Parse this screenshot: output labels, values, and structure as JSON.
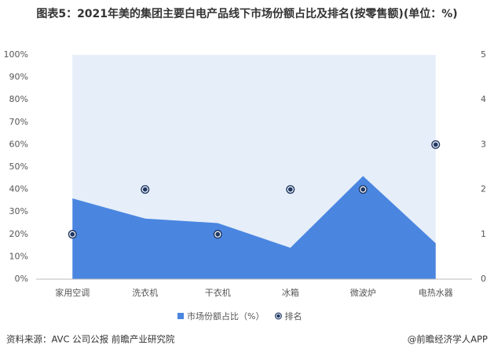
{
  "chart_data": {
    "type": "area",
    "title": "图表5：2021年美的集团主要白电产品线下市场份额占比及排名(按零售额)(单位：%)",
    "categories": [
      "家用空调",
      "洗衣机",
      "干衣机",
      "冰箱",
      "微波炉",
      "电热水器"
    ],
    "series": [
      {
        "name": "市场份额占比（%）",
        "color": "#4a86e0",
        "values": [
          36,
          27,
          25,
          14,
          46,
          16
        ]
      },
      {
        "name": "排名",
        "color": "#1f3864",
        "axis": "y2",
        "values": [
          1,
          2,
          1,
          2,
          2,
          3
        ]
      }
    ],
    "ylim": [
      0,
      100
    ],
    "yticks": [
      {
        "value": 0,
        "label": "0%"
      },
      {
        "value": 10,
        "label": "10%"
      },
      {
        "value": 20,
        "label": "20%"
      },
      {
        "value": 30,
        "label": "30%"
      },
      {
        "value": 40,
        "label": "40%"
      },
      {
        "value": 50,
        "label": "50%"
      },
      {
        "value": 60,
        "label": "60%"
      },
      {
        "value": 70,
        "label": "70%"
      },
      {
        "value": 80,
        "label": "80%"
      },
      {
        "value": 90,
        "label": "90%"
      },
      {
        "value": 100,
        "label": "100%"
      }
    ],
    "y2lim": [
      0,
      5
    ],
    "y2ticks": [
      0,
      1,
      2,
      3,
      4,
      5
    ],
    "background_color": "#e6eefa",
    "source": "资料来源：AVC 公司公报 前瞻产业研究院",
    "credit": "@前瞻经济学人APP"
  }
}
